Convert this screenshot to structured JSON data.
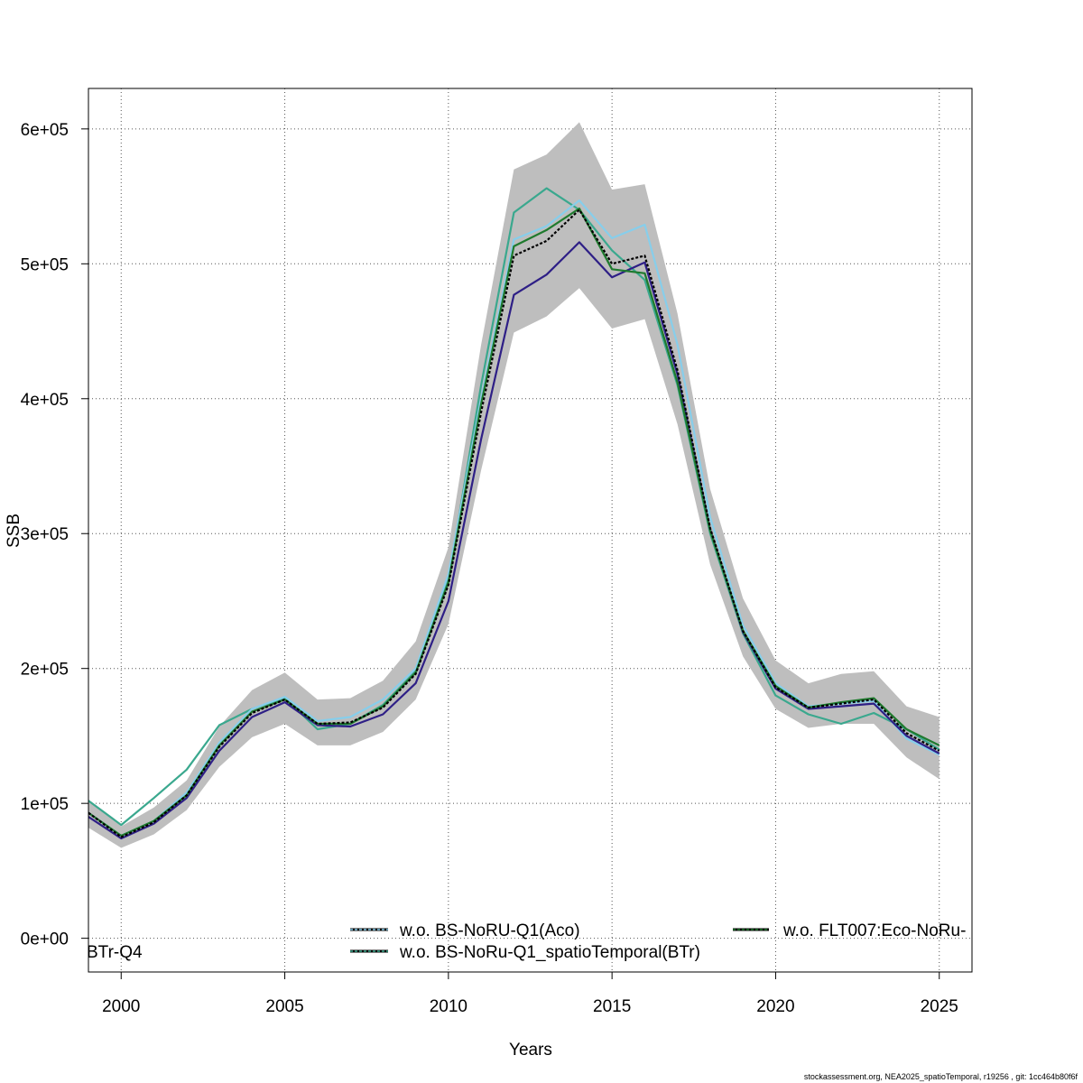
{
  "footer": "stockassessment.org, NEA2025_spatioTemporal, r19256 , git: 1cc464b80f6f",
  "chart_data": {
    "type": "line",
    "xlabel": "Years",
    "ylabel": "SSB",
    "xlim": [
      1999,
      2026
    ],
    "ylim": [
      -25000,
      630000
    ],
    "x_ticks": [
      2000,
      2005,
      2010,
      2015,
      2020,
      2025
    ],
    "y_ticks": [
      0,
      100000,
      200000,
      300000,
      400000,
      500000,
      600000
    ],
    "y_tick_labels": [
      "0e+00",
      "1e+05",
      "2e+05",
      "3e+05",
      "4e+05",
      "5e+05",
      "6e+05"
    ],
    "grid": true,
    "x": [
      1999,
      2000,
      2001,
      2002,
      2003,
      2004,
      2005,
      2006,
      2007,
      2008,
      2009,
      2010,
      2011,
      2012,
      2013,
      2014,
      2015,
      2016,
      2017,
      2018,
      2019,
      2020,
      2021,
      2022,
      2023,
      2024,
      2025
    ],
    "confidence_band": {
      "color": "#bebebe",
      "lower": [
        82000,
        67000,
        77000,
        95000,
        127000,
        149000,
        159000,
        143000,
        143000,
        153000,
        177000,
        233000,
        347000,
        449000,
        461000,
        482000,
        452000,
        459000,
        381000,
        277000,
        209000,
        170000,
        156000,
        159000,
        159000,
        134000,
        118000
      ],
      "upper": [
        103000,
        83000,
        97000,
        117000,
        157000,
        184000,
        197000,
        177000,
        178000,
        191000,
        220000,
        290000,
        440000,
        570000,
        581000,
        605000,
        555000,
        559000,
        463000,
        333000,
        252000,
        206000,
        189000,
        196000,
        198000,
        172000,
        164000
      ]
    },
    "series": [
      {
        "color": "#000000",
        "dashed": true,
        "values": [
          93000,
          75000,
          86000,
          106000,
          142000,
          167000,
          177000,
          159000,
          160000,
          171000,
          196000,
          262000,
          390000,
          506000,
          517000,
          540000,
          500000,
          506000,
          421000,
          304000,
          228000,
          186000,
          171000,
          174000,
          177000,
          152000,
          139000
        ]
      },
      {
        "name": "w.o. BS-NoRU-Q1(Aco)",
        "color": "#87ceeb",
        "dashed": false,
        "values": [
          93000,
          76000,
          87000,
          108000,
          145000,
          170000,
          179000,
          161000,
          164000,
          177000,
          200000,
          270000,
          400000,
          518000,
          528000,
          547000,
          519000,
          529000,
          440000,
          312000,
          232000,
          189000,
          172000,
          174000,
          176000,
          148000,
          136000
        ]
      },
      {
        "color": "#2e1f86",
        "dashed": false,
        "values": [
          90000,
          74000,
          85000,
          104000,
          139000,
          164000,
          175000,
          158000,
          157000,
          166000,
          189000,
          250000,
          370000,
          477000,
          492000,
          516000,
          490000,
          501000,
          418000,
          303000,
          227000,
          185000,
          170000,
          172000,
          174000,
          150000,
          137000
        ]
      },
      {
        "name": "w.o. BS-NoRu-Q1_spatioTemporal(BTr)",
        "color": "#3aa88e",
        "dashed": false,
        "values": [
          102000,
          84000,
          104000,
          125000,
          158000,
          170000,
          178000,
          155000,
          159000,
          173000,
          198000,
          266000,
          410000,
          538000,
          556000,
          540000,
          510000,
          488000,
          410000,
          300000,
          226000,
          180000,
          166000,
          159000,
          167000,
          155000,
          140000
        ]
      },
      {
        "name": "w.o. FLT007:Eco-NoRu-",
        "color": "#1f7a2e",
        "dashed": false,
        "values": [
          93000,
          76000,
          87000,
          106000,
          143000,
          168000,
          177000,
          159000,
          159000,
          172000,
          197000,
          264000,
          396000,
          513000,
          525000,
          541000,
          496000,
          493000,
          412000,
          302000,
          228000,
          187000,
          171000,
          175000,
          178000,
          155000,
          143000
        ]
      }
    ],
    "legend": {
      "placement": "bottom",
      "partial_text": "BTr-Q4",
      "entries": [
        {
          "label": "w.o. BS-NoRU-Q1(Aco)",
          "color": "#87ceeb"
        },
        {
          "label": "w.o. BS-NoRu-Q1_spatioTemporal(BTr)",
          "color": "#3aa88e"
        },
        {
          "label": "w.o. FLT007:Eco-NoRu-",
          "color": "#1f7a2e"
        }
      ]
    }
  }
}
